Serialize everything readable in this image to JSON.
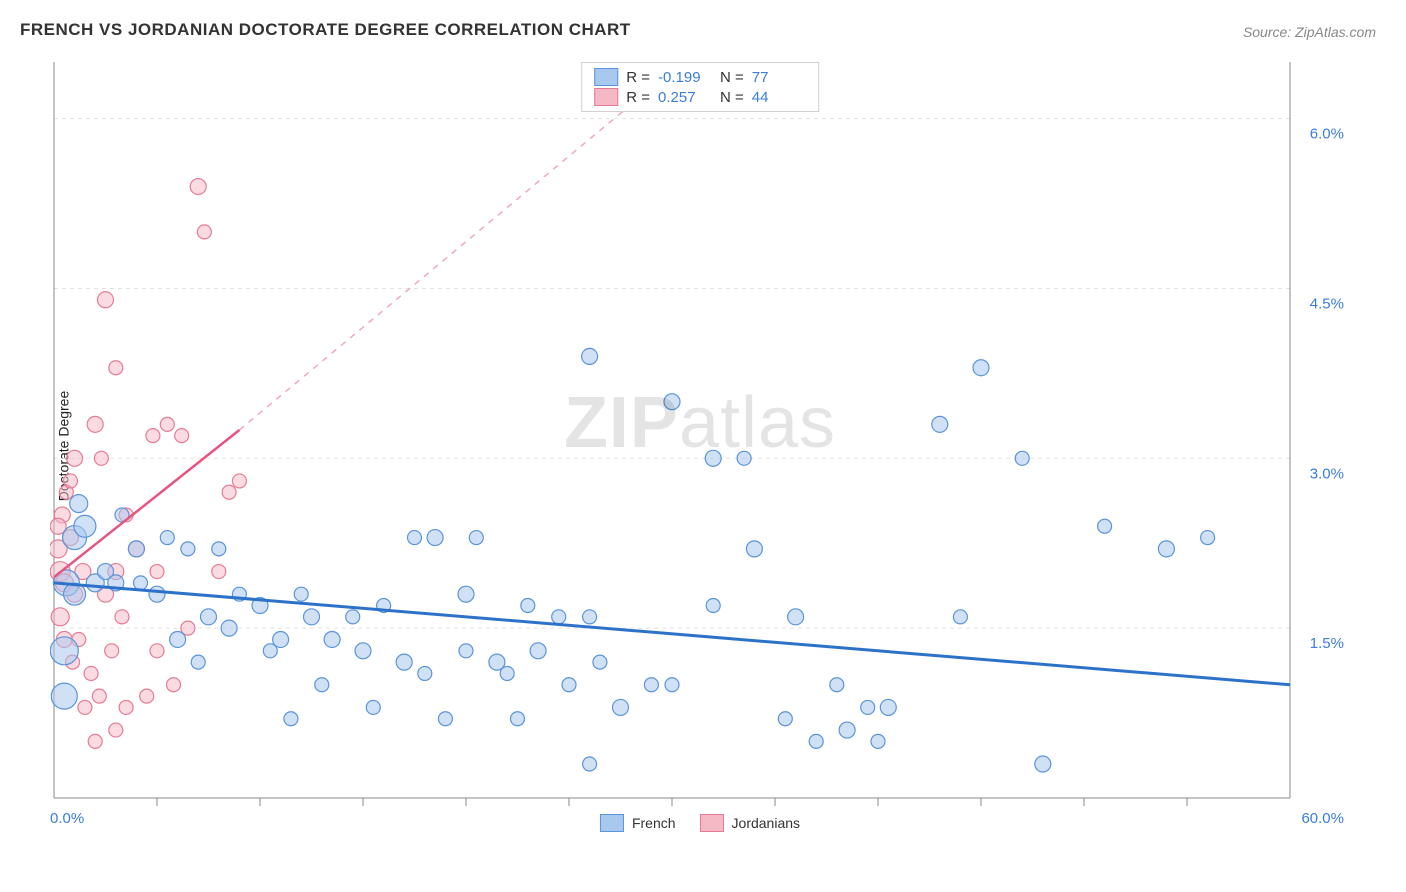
{
  "title": "FRENCH VS JORDANIAN DOCTORATE DEGREE CORRELATION CHART",
  "source": "Source: ZipAtlas.com",
  "ylabel": "Doctorate Degree",
  "watermark_bold": "ZIP",
  "watermark_light": "atlas",
  "chart": {
    "type": "scatter",
    "background_color": "#ffffff",
    "grid_color": "#e2e2e2",
    "axis_color": "#888888",
    "tick_color": "#888888",
    "xlim": [
      0,
      60
    ],
    "ylim": [
      0,
      6.5
    ],
    "x_ticks_minor_step": 5,
    "y_gridlines": [
      1.5,
      3.0,
      4.5,
      6.0
    ],
    "y_gridline_labels": [
      "1.5%",
      "3.0%",
      "4.5%",
      "6.0%"
    ],
    "x_axis_start_label": "0.0%",
    "x_axis_end_label": "60.0%",
    "label_color": "#3b7dd8",
    "label_fontsize": 15,
    "series": [
      {
        "name": "French",
        "legend_label": "French",
        "fill": "#a9c8ef",
        "stroke": "#5a94da",
        "fill_opacity": 0.55,
        "trend": {
          "color": "#2d72c9",
          "width": 3,
          "x1": 0,
          "y1": 1.9,
          "x2": 60,
          "y2": 1.0
        },
        "R": "-0.199",
        "N": "77",
        "points": [
          {
            "x": 0.5,
            "y": 1.3,
            "r": 14
          },
          {
            "x": 0.6,
            "y": 1.9,
            "r": 13
          },
          {
            "x": 1.0,
            "y": 2.3,
            "r": 12
          },
          {
            "x": 0.5,
            "y": 0.9,
            "r": 13
          },
          {
            "x": 1.5,
            "y": 2.4,
            "r": 11
          },
          {
            "x": 1.2,
            "y": 2.6,
            "r": 9
          },
          {
            "x": 1.0,
            "y": 1.8,
            "r": 11
          },
          {
            "x": 2.0,
            "y": 1.9,
            "r": 9
          },
          {
            "x": 2.5,
            "y": 2.0,
            "r": 8
          },
          {
            "x": 3.0,
            "y": 1.9,
            "r": 8
          },
          {
            "x": 3.3,
            "y": 2.5,
            "r": 7
          },
          {
            "x": 4.0,
            "y": 2.2,
            "r": 8
          },
          {
            "x": 4.2,
            "y": 1.9,
            "r": 7
          },
          {
            "x": 5.0,
            "y": 1.8,
            "r": 8
          },
          {
            "x": 5.5,
            "y": 2.3,
            "r": 7
          },
          {
            "x": 6.0,
            "y": 1.4,
            "r": 8
          },
          {
            "x": 6.5,
            "y": 2.2,
            "r": 7
          },
          {
            "x": 7.5,
            "y": 1.6,
            "r": 8
          },
          {
            "x": 7.0,
            "y": 1.2,
            "r": 7
          },
          {
            "x": 8.0,
            "y": 2.2,
            "r": 7
          },
          {
            "x": 8.5,
            "y": 1.5,
            "r": 8
          },
          {
            "x": 9.0,
            "y": 1.8,
            "r": 7
          },
          {
            "x": 10.0,
            "y": 1.7,
            "r": 8
          },
          {
            "x": 10.5,
            "y": 1.3,
            "r": 7
          },
          {
            "x": 11.0,
            "y": 1.4,
            "r": 8
          },
          {
            "x": 11.5,
            "y": 0.7,
            "r": 7
          },
          {
            "x": 12.0,
            "y": 1.8,
            "r": 7
          },
          {
            "x": 12.5,
            "y": 1.6,
            "r": 8
          },
          {
            "x": 13.0,
            "y": 1.0,
            "r": 7
          },
          {
            "x": 13.5,
            "y": 1.4,
            "r": 8
          },
          {
            "x": 14.5,
            "y": 1.6,
            "r": 7
          },
          {
            "x": 15.0,
            "y": 1.3,
            "r": 8
          },
          {
            "x": 15.5,
            "y": 0.8,
            "r": 7
          },
          {
            "x": 16.0,
            "y": 1.7,
            "r": 7
          },
          {
            "x": 17.0,
            "y": 1.2,
            "r": 8
          },
          {
            "x": 17.5,
            "y": 2.3,
            "r": 7
          },
          {
            "x": 18.0,
            "y": 1.1,
            "r": 7
          },
          {
            "x": 18.5,
            "y": 2.3,
            "r": 8
          },
          {
            "x": 19.0,
            "y": 0.7,
            "r": 7
          },
          {
            "x": 20.0,
            "y": 1.8,
            "r": 8
          },
          {
            "x": 20.5,
            "y": 2.3,
            "r": 7
          },
          {
            "x": 20.0,
            "y": 1.3,
            "r": 7
          },
          {
            "x": 21.5,
            "y": 1.2,
            "r": 8
          },
          {
            "x": 22.0,
            "y": 1.1,
            "r": 7
          },
          {
            "x": 22.5,
            "y": 0.7,
            "r": 7
          },
          {
            "x": 23.0,
            "y": 1.7,
            "r": 7
          },
          {
            "x": 23.5,
            "y": 1.3,
            "r": 8
          },
          {
            "x": 24.5,
            "y": 1.6,
            "r": 7
          },
          {
            "x": 25.0,
            "y": 1.0,
            "r": 7
          },
          {
            "x": 26.0,
            "y": 3.9,
            "r": 8
          },
          {
            "x": 26.0,
            "y": 1.6,
            "r": 7
          },
          {
            "x": 26.5,
            "y": 1.2,
            "r": 7
          },
          {
            "x": 26.0,
            "y": 0.3,
            "r": 7
          },
          {
            "x": 27.5,
            "y": 0.8,
            "r": 8
          },
          {
            "x": 29.0,
            "y": 1.0,
            "r": 7
          },
          {
            "x": 30.0,
            "y": 3.5,
            "r": 8
          },
          {
            "x": 30.0,
            "y": 1.0,
            "r": 7
          },
          {
            "x": 32.0,
            "y": 3.0,
            "r": 8
          },
          {
            "x": 32.0,
            "y": 1.7,
            "r": 7
          },
          {
            "x": 33.5,
            "y": 3.0,
            "r": 7
          },
          {
            "x": 34.0,
            "y": 2.2,
            "r": 8
          },
          {
            "x": 35.5,
            "y": 0.7,
            "r": 7
          },
          {
            "x": 36.0,
            "y": 1.6,
            "r": 8
          },
          {
            "x": 37.0,
            "y": 0.5,
            "r": 7
          },
          {
            "x": 38.0,
            "y": 1.0,
            "r": 7
          },
          {
            "x": 38.5,
            "y": 0.6,
            "r": 8
          },
          {
            "x": 39.5,
            "y": 0.8,
            "r": 7
          },
          {
            "x": 40.0,
            "y": 0.5,
            "r": 7
          },
          {
            "x": 40.5,
            "y": 0.8,
            "r": 8
          },
          {
            "x": 43.0,
            "y": 3.3,
            "r": 8
          },
          {
            "x": 44.0,
            "y": 1.6,
            "r": 7
          },
          {
            "x": 45.0,
            "y": 3.8,
            "r": 8
          },
          {
            "x": 47.0,
            "y": 3.0,
            "r": 7
          },
          {
            "x": 48.0,
            "y": 0.3,
            "r": 8
          },
          {
            "x": 51.0,
            "y": 2.4,
            "r": 7
          },
          {
            "x": 54.0,
            "y": 2.2,
            "r": 8
          },
          {
            "x": 56.0,
            "y": 2.3,
            "r": 7
          }
        ]
      },
      {
        "name": "Jordanians",
        "legend_label": "Jordanians",
        "fill": "#f5b8c5",
        "stroke": "#e77b95",
        "fill_opacity": 0.5,
        "trend": {
          "color": "#e75480",
          "width": 2.5,
          "x1": 0,
          "y1": 1.95,
          "x2": 9,
          "y2": 3.25
        },
        "trend_dashed": {
          "color": "#f2a8bb",
          "width": 1.5,
          "x1": 9,
          "y1": 3.25,
          "x2": 30.5,
          "y2": 6.5
        },
        "R": "0.257",
        "N": "44",
        "points": [
          {
            "x": 0.2,
            "y": 2.2,
            "r": 9
          },
          {
            "x": 0.4,
            "y": 2.5,
            "r": 8
          },
          {
            "x": 0.3,
            "y": 2.0,
            "r": 10
          },
          {
            "x": 0.5,
            "y": 1.9,
            "r": 9
          },
          {
            "x": 0.2,
            "y": 2.4,
            "r": 8
          },
          {
            "x": 0.6,
            "y": 2.7,
            "r": 7
          },
          {
            "x": 0.3,
            "y": 1.6,
            "r": 9
          },
          {
            "x": 0.8,
            "y": 2.8,
            "r": 7
          },
          {
            "x": 1.0,
            "y": 3.0,
            "r": 8
          },
          {
            "x": 0.5,
            "y": 1.4,
            "r": 8
          },
          {
            "x": 0.9,
            "y": 1.2,
            "r": 7
          },
          {
            "x": 1.4,
            "y": 2.0,
            "r": 8
          },
          {
            "x": 1.2,
            "y": 1.4,
            "r": 7
          },
          {
            "x": 1.8,
            "y": 1.1,
            "r": 7
          },
          {
            "x": 1.5,
            "y": 0.8,
            "r": 7
          },
          {
            "x": 2.0,
            "y": 0.5,
            "r": 7
          },
          {
            "x": 2.2,
            "y": 0.9,
            "r": 7
          },
          {
            "x": 2.5,
            "y": 1.8,
            "r": 8
          },
          {
            "x": 2.8,
            "y": 1.3,
            "r": 7
          },
          {
            "x": 2.0,
            "y": 3.3,
            "r": 8
          },
          {
            "x": 2.3,
            "y": 3.0,
            "r": 7
          },
          {
            "x": 3.0,
            "y": 2.0,
            "r": 8
          },
          {
            "x": 3.3,
            "y": 1.6,
            "r": 7
          },
          {
            "x": 3.5,
            "y": 2.5,
            "r": 7
          },
          {
            "x": 3.0,
            "y": 0.6,
            "r": 7
          },
          {
            "x": 3.5,
            "y": 0.8,
            "r": 7
          },
          {
            "x": 2.5,
            "y": 4.4,
            "r": 8
          },
          {
            "x": 3.0,
            "y": 3.8,
            "r": 7
          },
          {
            "x": 4.0,
            "y": 2.2,
            "r": 8
          },
          {
            "x": 4.5,
            "y": 0.9,
            "r": 7
          },
          {
            "x": 4.8,
            "y": 3.2,
            "r": 7
          },
          {
            "x": 5.0,
            "y": 2.0,
            "r": 7
          },
          {
            "x": 5.5,
            "y": 3.3,
            "r": 7
          },
          {
            "x": 5.0,
            "y": 1.3,
            "r": 7
          },
          {
            "x": 5.8,
            "y": 1.0,
            "r": 7
          },
          {
            "x": 6.2,
            "y": 3.2,
            "r": 7
          },
          {
            "x": 6.5,
            "y": 1.5,
            "r": 7
          },
          {
            "x": 7.0,
            "y": 5.4,
            "r": 8
          },
          {
            "x": 7.3,
            "y": 5.0,
            "r": 7
          },
          {
            "x": 8.0,
            "y": 2.0,
            "r": 7
          },
          {
            "x": 8.5,
            "y": 2.7,
            "r": 7
          },
          {
            "x": 9.0,
            "y": 2.8,
            "r": 7
          },
          {
            "x": 0.8,
            "y": 2.3,
            "r": 8
          },
          {
            "x": 1.0,
            "y": 1.8,
            "r": 8
          }
        ]
      }
    ]
  }
}
